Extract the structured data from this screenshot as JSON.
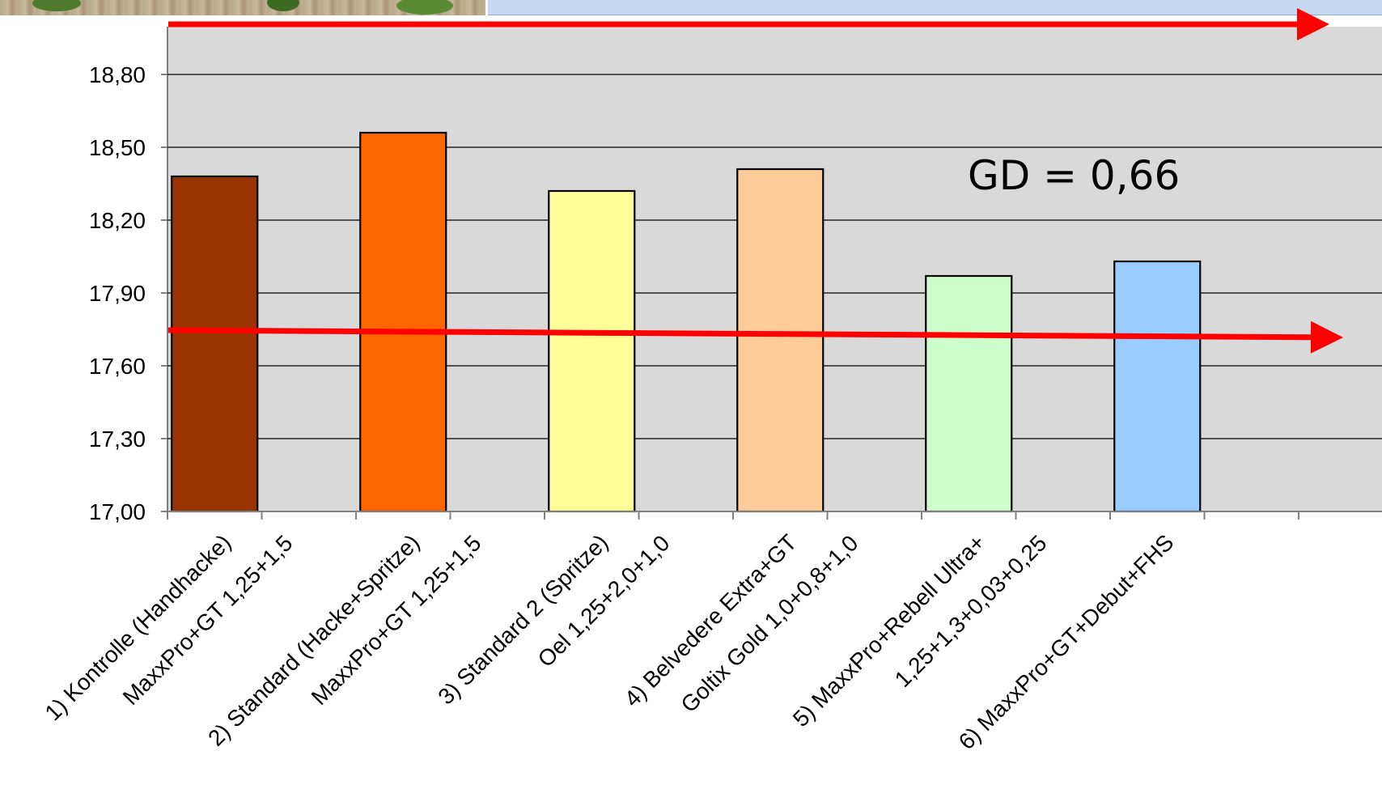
{
  "chart_data": {
    "type": "bar",
    "title": "",
    "xlabel": "",
    "ylabel": "",
    "ylim": [
      17.0,
      19.0
    ],
    "yticks": [
      "17,00",
      "17,30",
      "17,60",
      "17,90",
      "18,20",
      "18,50",
      "18,80"
    ],
    "ytick_values": [
      17.0,
      17.3,
      17.6,
      17.9,
      18.2,
      18.5,
      18.8
    ],
    "categories": [
      "1) Kontrolle (Handhacke)",
      "2) Standard (Hacke+Spritze)",
      "3) Standard 2 (Spritze)",
      "4) Belvedere Extra+GT",
      "5) MaxxPro+Rebell Ultra+",
      "6) MaxxPro+GT+Debut+FHS"
    ],
    "category_sublabels": [
      "",
      "MaxxPro+GT 1,25+1,5",
      "MaxxPro+GT 1,25+1,5",
      "Oel 1,25+2,0+1,0",
      "Goltix Gold 1,0+0,8+1,0",
      "1,25+1,3+0,03+0,25"
    ],
    "values": [
      18.38,
      18.56,
      18.32,
      18.41,
      17.97,
      18.03
    ],
    "colors": [
      "#993300",
      "#ff6600",
      "#ffff99",
      "#ffcc99",
      "#ccffcc",
      "#99ccff"
    ],
    "grid": true,
    "annotation": "GD = 0,66"
  }
}
